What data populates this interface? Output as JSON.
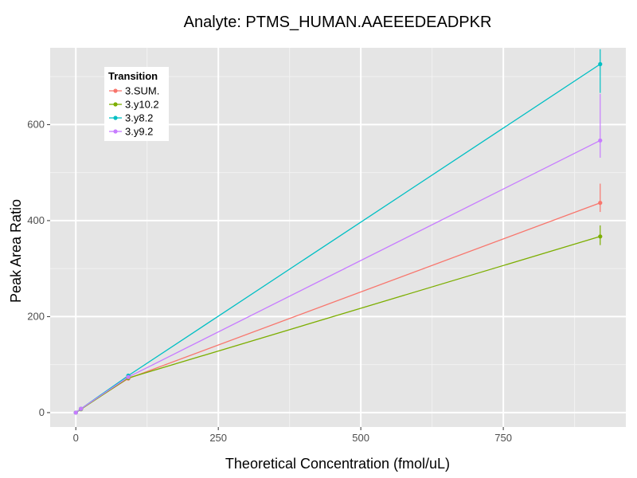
{
  "chart_data": {
    "type": "line",
    "title": "Analyte: PTMS_HUMAN.AAEEEDEADPKR",
    "xlabel": "Theoretical Concentration (fmol/uL)",
    "ylabel": "Peak Area Ratio",
    "xlim": [
      -45,
      965
    ],
    "ylim": [
      -30,
      760
    ],
    "xticks": [
      0,
      250,
      500,
      750
    ],
    "yticks": [
      0,
      200,
      400,
      600
    ],
    "grid": true,
    "legend": {
      "title": "Transition",
      "position": "top-left"
    },
    "series": [
      {
        "name": "3.SUM.",
        "color": "#F8766D",
        "points": [
          {
            "x": 0,
            "y": 0
          },
          {
            "x": 9,
            "y": 8
          },
          {
            "x": 92,
            "y": 71
          },
          {
            "x": 920,
            "y": 437,
            "ymin": 418,
            "ymax": 477
          }
        ]
      },
      {
        "name": "3.y10.2",
        "color": "#7CAE00",
        "points": [
          {
            "x": 0,
            "y": 0
          },
          {
            "x": 9,
            "y": 7
          },
          {
            "x": 92,
            "y": 72
          },
          {
            "x": 920,
            "y": 367,
            "ymin": 349,
            "ymax": 390
          }
        ]
      },
      {
        "name": "3.y8.2",
        "color": "#00BFC4",
        "points": [
          {
            "x": 0,
            "y": 0
          },
          {
            "x": 9,
            "y": 8
          },
          {
            "x": 92,
            "y": 77
          },
          {
            "x": 920,
            "y": 726,
            "ymin": 666,
            "ymax": 757
          }
        ]
      },
      {
        "name": "3.y9.2",
        "color": "#C77CFF",
        "points": [
          {
            "x": 0,
            "y": 0
          },
          {
            "x": 9,
            "y": 8
          },
          {
            "x": 92,
            "y": 74
          },
          {
            "x": 920,
            "y": 567,
            "ymin": 531,
            "ymax": 664
          }
        ]
      }
    ]
  }
}
